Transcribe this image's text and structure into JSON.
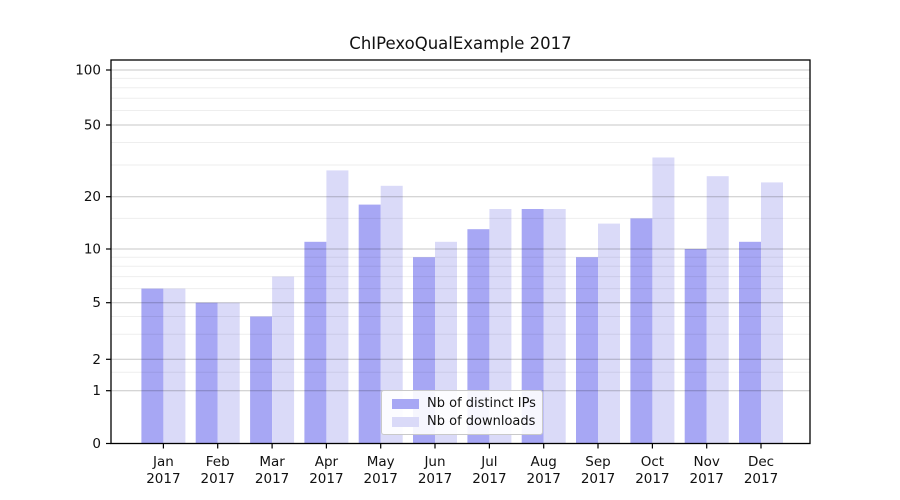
{
  "chart_data": {
    "type": "bar",
    "title": "ChIPexoQualExample 2017",
    "categories": [
      "Jan",
      "Feb",
      "Mar",
      "Apr",
      "May",
      "Jun",
      "Jul",
      "Aug",
      "Sep",
      "Oct",
      "Nov",
      "Dec"
    ],
    "category_year": "2017",
    "series": [
      {
        "name": "Nb of distinct IPs",
        "color": "#a7a7f4",
        "values": [
          6,
          5,
          4,
          11,
          18,
          9,
          13,
          17,
          9,
          15,
          10,
          11
        ]
      },
      {
        "name": "Nb of downloads",
        "color": "#dadaf8",
        "values": [
          6,
          5,
          7,
          28,
          23,
          11,
          17,
          17,
          14,
          33,
          26,
          24
        ]
      }
    ],
    "xlabel": "",
    "ylabel": "",
    "y_scale": "log-like",
    "y_ticks": [
      0,
      1,
      2,
      5,
      10,
      20,
      50,
      100
    ],
    "y_minor_gridlines": [
      1.5,
      3,
      4,
      6,
      7,
      8,
      9,
      15,
      30,
      40,
      60,
      70,
      80,
      90
    ],
    "ylim": [
      0,
      120
    ],
    "grid": true,
    "legend_position": "bottom-center-inside"
  }
}
